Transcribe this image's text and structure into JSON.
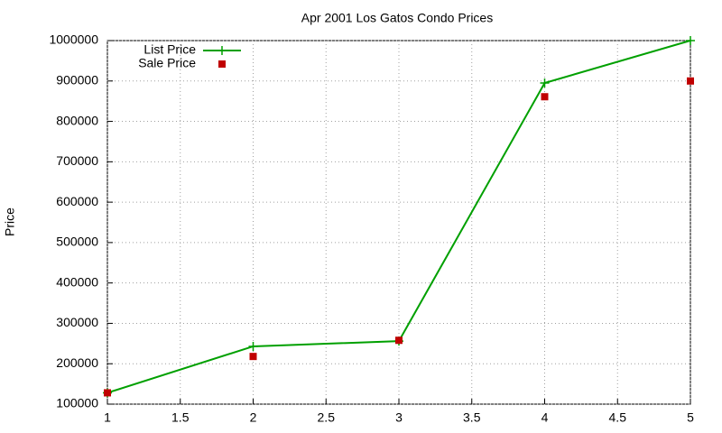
{
  "chart_data": {
    "type": "line",
    "title": "Apr 2001 Los Gatos Condo Prices",
    "ylabel": "Price",
    "x": [
      1,
      2,
      3,
      4,
      5
    ],
    "series": [
      {
        "name": "List Price",
        "color": "#00a000",
        "mode": "lines+markers",
        "marker": "plus",
        "values": [
          128000,
          243000,
          256000,
          895000,
          1000000
        ]
      },
      {
        "name": "Sale Price",
        "color": "#c00000",
        "mode": "markers",
        "marker": "square",
        "values": [
          128000,
          218000,
          258000,
          861000,
          900000
        ]
      }
    ],
    "xlim": [
      1,
      5
    ],
    "xticks": [
      1,
      1.5,
      2,
      2.5,
      3,
      3.5,
      4,
      4.5,
      5
    ],
    "ylim": [
      100000,
      1000000
    ],
    "yticks": [
      100000,
      200000,
      300000,
      400000,
      500000,
      600000,
      700000,
      800000,
      900000,
      1000000
    ],
    "grid": true,
    "legend": "top-left"
  }
}
